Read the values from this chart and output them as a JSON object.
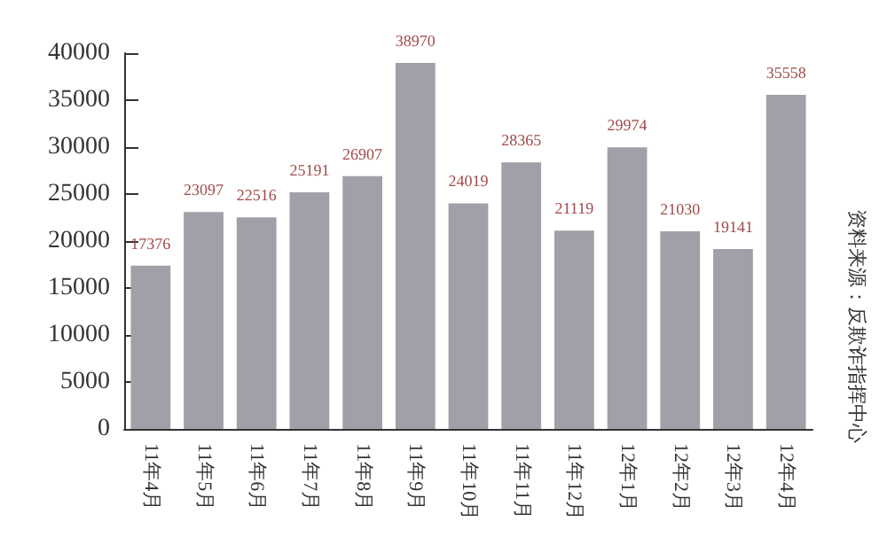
{
  "chart_data": {
    "type": "bar",
    "categories": [
      "11年4月",
      "11年5月",
      "11年6月",
      "11年7月",
      "11年8月",
      "11年9月",
      "11年10月",
      "11年11月",
      "11年12月",
      "12年1月",
      "12年2月",
      "12年3月",
      "12年4月"
    ],
    "values": [
      17376,
      23097,
      22516,
      25191,
      26907,
      38970,
      24019,
      28365,
      21119,
      29974,
      21030,
      19141,
      35558
    ],
    "color": "#a0a0a8",
    "ylim": [
      0,
      40000
    ],
    "yticks": [
      0,
      5000,
      10000,
      15000,
      20000,
      25000,
      30000,
      35000,
      40000
    ],
    "grid": false,
    "data_labels": true,
    "annotations": [
      "资料来源：反欺诈指挥中心"
    ]
  }
}
